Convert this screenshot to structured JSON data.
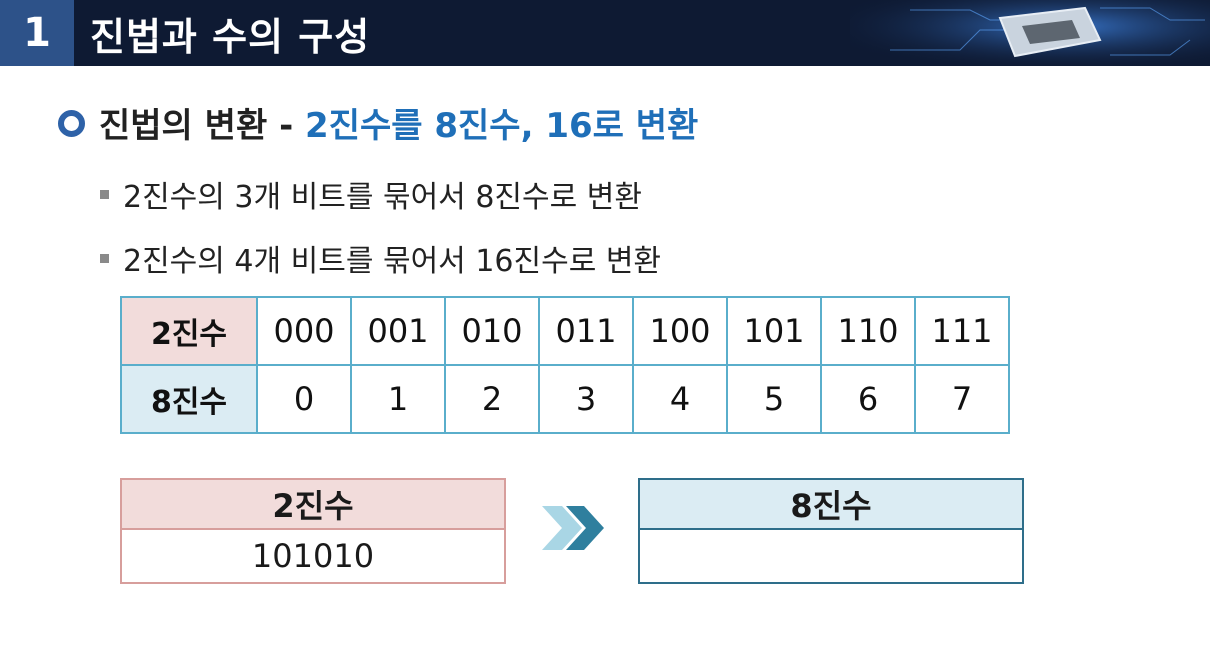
{
  "header": {
    "number": "1",
    "title": "진법과 수의 구성"
  },
  "section": {
    "heading_main": "진법의 변환 - ",
    "heading_accent": "2진수를 8진수, 16로 변환"
  },
  "bullets": [
    "2진수의 3개 비트를 묶어서 8진수로 변환",
    "2진수의 4개 비트를 묶어서 16진수로 변환"
  ],
  "table": {
    "row_binary": {
      "label": "2진수",
      "values": [
        "000",
        "001",
        "010",
        "011",
        "100",
        "101",
        "110",
        "111"
      ]
    },
    "row_octal": {
      "label": "8진수",
      "values": [
        "0",
        "1",
        "2",
        "3",
        "4",
        "5",
        "6",
        "7"
      ]
    }
  },
  "example": {
    "binary_label": "2진수",
    "binary_value": "101010",
    "octal_label": "8진수",
    "octal_value": ""
  },
  "colors": {
    "header_bg": "#0e1a33",
    "number_box": "#2d5289",
    "accent_text": "#1f6fb8",
    "table_border": "#5aaecb",
    "pink": "#f2dcdb",
    "light_blue": "#dbecf3"
  },
  "icons": {
    "heading_marker": "ring-bullet-icon",
    "bullet_marker": "square-bullet-icon",
    "arrow": "double-chevron-right-icon"
  }
}
